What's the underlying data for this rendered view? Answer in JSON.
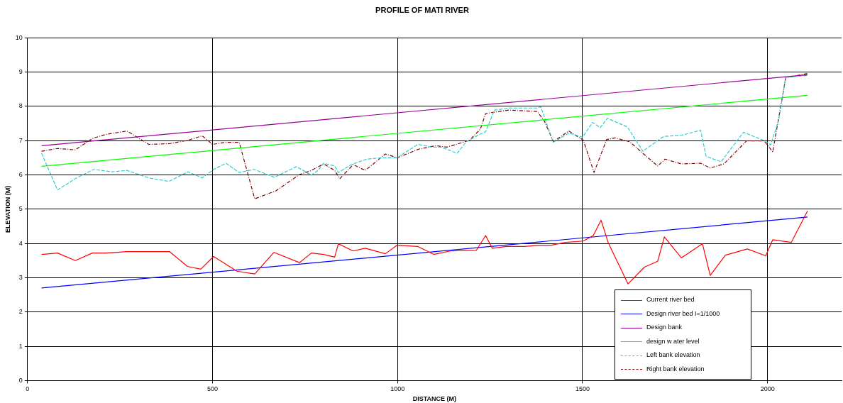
{
  "chart_data": {
    "type": "line",
    "title": "PROFILE OF MATI RIVER",
    "xlabel": "DISTANCE (M)",
    "ylabel": "ELEVATION (M)",
    "xlim": [
      0,
      2200
    ],
    "xticks": [
      0,
      500,
      1000,
      1500,
      2000
    ],
    "ylim": [
      0,
      10
    ],
    "yticks": [
      0,
      1,
      2,
      3,
      4,
      5,
      6,
      7,
      8,
      9,
      10
    ],
    "grid": true,
    "legend": "bottom right",
    "marker": "none",
    "series": [
      {
        "name": "Current river bed",
        "color": "#ff0000",
        "line_style": "solid",
        "x": [
          38,
          81,
          129,
          175,
          211,
          269,
          332,
          384,
          432,
          468,
          503,
          566,
          614,
          666,
          735,
          767,
          800,
          830,
          840,
          880,
          913,
          967,
          999,
          1055,
          1098,
          1142,
          1213,
          1238,
          1256,
          1294,
          1344,
          1381,
          1415,
          1454,
          1502,
          1529,
          1550,
          1569,
          1623,
          1667,
          1703,
          1721,
          1767,
          1824,
          1845,
          1886,
          1945,
          1995,
          2014,
          2064,
          2108
        ],
        "values": [
          3.68,
          3.72,
          3.5,
          3.72,
          3.72,
          3.76,
          3.76,
          3.76,
          3.33,
          3.25,
          3.62,
          3.19,
          3.11,
          3.74,
          3.44,
          3.72,
          3.68,
          3.6,
          3.99,
          3.78,
          3.86,
          3.7,
          3.95,
          3.91,
          3.68,
          3.78,
          3.8,
          4.23,
          3.86,
          3.91,
          3.91,
          3.95,
          3.95,
          4.03,
          4.07,
          4.23,
          4.68,
          4.03,
          2.82,
          3.31,
          3.48,
          4.19,
          3.58,
          3.99,
          3.07,
          3.66,
          3.84,
          3.64,
          4.11,
          4.03,
          4.95
        ]
      },
      {
        "name": "Design river bed I=1/1000",
        "color": "#0000ff",
        "line_style": "solid",
        "x": [
          38,
          2108
        ],
        "values": [
          2.7,
          4.77
        ]
      },
      {
        "name": "Design bank",
        "color": "#990099",
        "line_style": "solid",
        "x": [
          38,
          2108
        ],
        "values": [
          6.85,
          8.92
        ]
      },
      {
        "name": "design w ater level",
        "color": "#00ff00",
        "line_style": "solid",
        "x": [
          38,
          2108
        ],
        "values": [
          6.25,
          8.32
        ]
      },
      {
        "name": "Left bank elevation",
        "color": "#33cccc",
        "line_style": "dashed",
        "x": [
          38,
          81,
          129,
          179,
          227,
          269,
          328,
          382,
          434,
          472,
          503,
          536,
          572,
          612,
          667,
          727,
          767,
          785,
          800,
          830,
          840,
          875,
          917,
          957,
          999,
          1055,
          1094,
          1118,
          1161,
          1186,
          1222,
          1238,
          1262,
          1301,
          1340,
          1377,
          1387,
          1421,
          1463,
          1500,
          1527,
          1548,
          1567,
          1621,
          1663,
          1719,
          1769,
          1819,
          1834,
          1874,
          1935,
          1991,
          2008,
          2030,
          2049,
          2108
        ],
        "values": [
          6.63,
          5.56,
          5.89,
          6.16,
          6.09,
          6.13,
          5.91,
          5.81,
          6.09,
          5.91,
          6.16,
          6.34,
          6.07,
          6.16,
          5.93,
          6.24,
          5.99,
          6.13,
          6.34,
          6.26,
          6.07,
          6.3,
          6.46,
          6.5,
          6.5,
          6.89,
          6.81,
          6.81,
          6.63,
          6.97,
          7.18,
          7.26,
          7.89,
          7.95,
          7.95,
          7.95,
          7.99,
          6.95,
          7.22,
          7.1,
          7.53,
          7.38,
          7.65,
          7.4,
          6.69,
          7.12,
          7.16,
          7.3,
          6.54,
          6.38,
          7.24,
          7,
          6.87,
          7.59,
          8.85,
          8.9
        ]
      },
      {
        "name": "Right bank elevation",
        "color": "#800000",
        "line_style": "dashdot",
        "x": [
          38,
          81,
          129,
          175,
          211,
          269,
          328,
          384,
          434,
          472,
          500,
          536,
          572,
          614,
          672,
          735,
          767,
          800,
          830,
          844,
          880,
          913,
          967,
          999,
          1057,
          1103,
          1134,
          1159,
          1195,
          1224,
          1238,
          1262,
          1301,
          1377,
          1396,
          1421,
          1463,
          1502,
          1531,
          1565,
          1588,
          1627,
          1665,
          1703,
          1723,
          1767,
          1819,
          1845,
          1882,
          1943,
          1991,
          2014,
          2049,
          2108
        ],
        "values": [
          6.69,
          6.77,
          6.73,
          7.06,
          7.18,
          7.28,
          6.89,
          6.91,
          7.01,
          7.14,
          6.89,
          6.95,
          6.95,
          5.3,
          5.54,
          6.01,
          6.13,
          6.32,
          6.13,
          5.89,
          6.3,
          6.13,
          6.61,
          6.5,
          6.75,
          6.85,
          6.81,
          6.89,
          7.01,
          7.34,
          7.79,
          7.83,
          7.89,
          7.85,
          7.59,
          6.97,
          7.28,
          7.01,
          6.07,
          7.03,
          7.08,
          6.97,
          6.61,
          6.26,
          6.46,
          6.32,
          6.34,
          6.2,
          6.32,
          6.99,
          6.99,
          6.67,
          8.83,
          8.96
        ]
      }
    ]
  }
}
